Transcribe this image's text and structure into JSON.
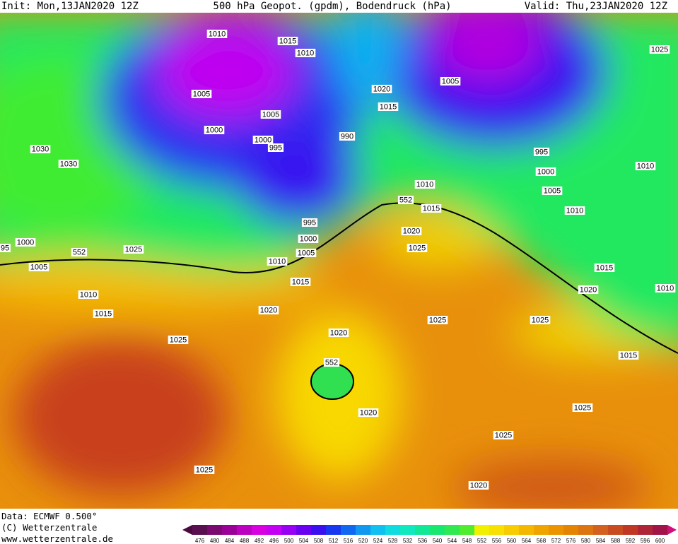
{
  "header": {
    "init": "Init: Mon,13JAN2020 12Z",
    "title": "500 hPa Geopot. (gpdm), Bodendruck (hPa)",
    "valid": "Valid: Thu,23JAN2020 12Z"
  },
  "isobar_labels": [
    "1010",
    "1015",
    "1010",
    "1005",
    "1005",
    "1000",
    "1000",
    "995",
    "990",
    "1020",
    "1015",
    "1005",
    "1025",
    "995",
    "1000",
    "1005",
    "1010",
    "1010",
    "1015",
    "1010",
    "1030",
    "1030",
    "995",
    "1000",
    "1005",
    "1010",
    "1015",
    "1020",
    "1000",
    "95",
    "1005",
    "1025",
    "1010",
    "1015",
    "1025",
    "1020",
    "1025",
    "1015",
    "1020",
    "1010",
    "1025",
    "1025",
    "1020",
    "1015",
    "1020",
    "1025",
    "1025",
    "1025",
    "1020"
  ],
  "height_labels": [
    "552",
    "552",
    "552"
  ],
  "footer": {
    "data": "Data: ECMWF  0.500°",
    "copyright": "(C) Wetterzentrale",
    "url": "www.wetterzentrale.de"
  },
  "colorbar": {
    "labels": [
      476,
      480,
      484,
      488,
      492,
      496,
      500,
      504,
      508,
      512,
      516,
      520,
      524,
      528,
      532,
      536,
      540,
      544,
      548,
      552,
      556,
      560,
      564,
      568,
      572,
      576,
      580,
      584,
      588,
      592,
      596,
      600
    ],
    "colors": [
      "#5a1050",
      "#7a0a70",
      "#9a0098",
      "#bb00c0",
      "#d800e0",
      "#c400f4",
      "#9800f4",
      "#6a00f0",
      "#3a10f0",
      "#1838f0",
      "#1068f0",
      "#1098f0",
      "#10c0f0",
      "#10dce0",
      "#10e8c0",
      "#10e898",
      "#18e870",
      "#30e850",
      "#50ec30",
      "#f0f000",
      "#f8e000",
      "#f8cc00",
      "#f4b800",
      "#f0a400",
      "#ec9400",
      "#e48400",
      "#dc7410",
      "#d46020",
      "#c84c20",
      "#c03824",
      "#b02438",
      "#a01448"
    ]
  }
}
